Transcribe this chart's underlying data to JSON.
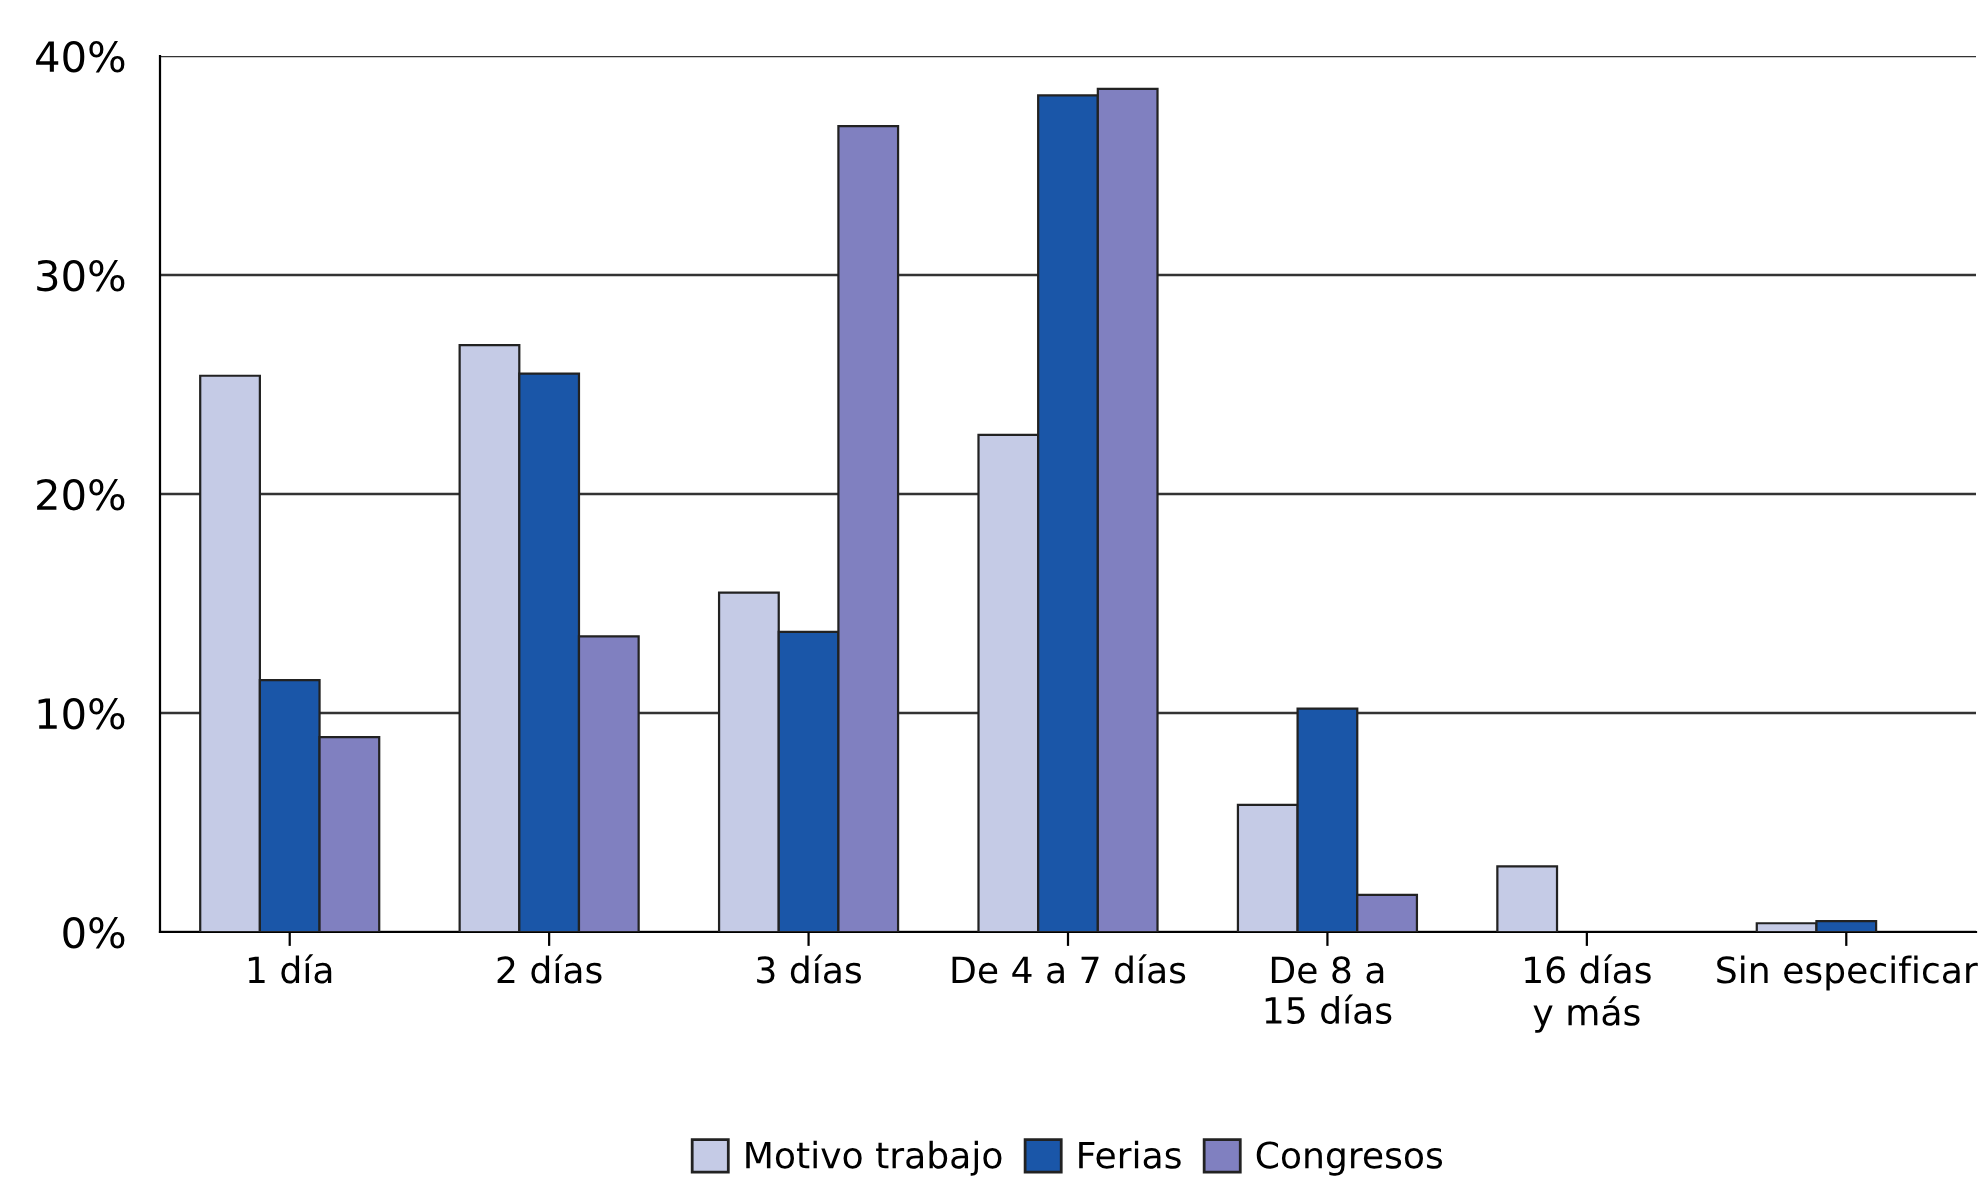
{
  "chart_data": {
    "type": "bar",
    "categories": [
      "1 día",
      "2 días",
      "3 días",
      "De 4 a 7 días",
      "De 8 a\n15 días",
      "16 días\ny más",
      "Sin especificar"
    ],
    "series": [
      {
        "name": "Motivo trabajo",
        "color": "#c5cbe6",
        "values": [
          25.4,
          26.8,
          15.5,
          22.7,
          5.8,
          3.0,
          0.4
        ]
      },
      {
        "name": "Ferias",
        "color": "#1a56a8",
        "values": [
          11.5,
          25.5,
          13.7,
          38.2,
          10.2,
          null,
          0.5
        ]
      },
      {
        "name": "Congresos",
        "color": "#8080c0",
        "values": [
          8.9,
          13.5,
          36.8,
          38.5,
          1.7,
          null,
          null
        ]
      }
    ],
    "ylim": [
      0,
      40
    ],
    "yticks": [
      {
        "value": 0,
        "label": "0%"
      },
      {
        "value": 10,
        "label": "10%"
      },
      {
        "value": 20,
        "label": "20%"
      },
      {
        "value": 30,
        "label": "30%"
      },
      {
        "value": 40,
        "label": "40%"
      }
    ],
    "grid": "y",
    "legend": "bottom"
  }
}
